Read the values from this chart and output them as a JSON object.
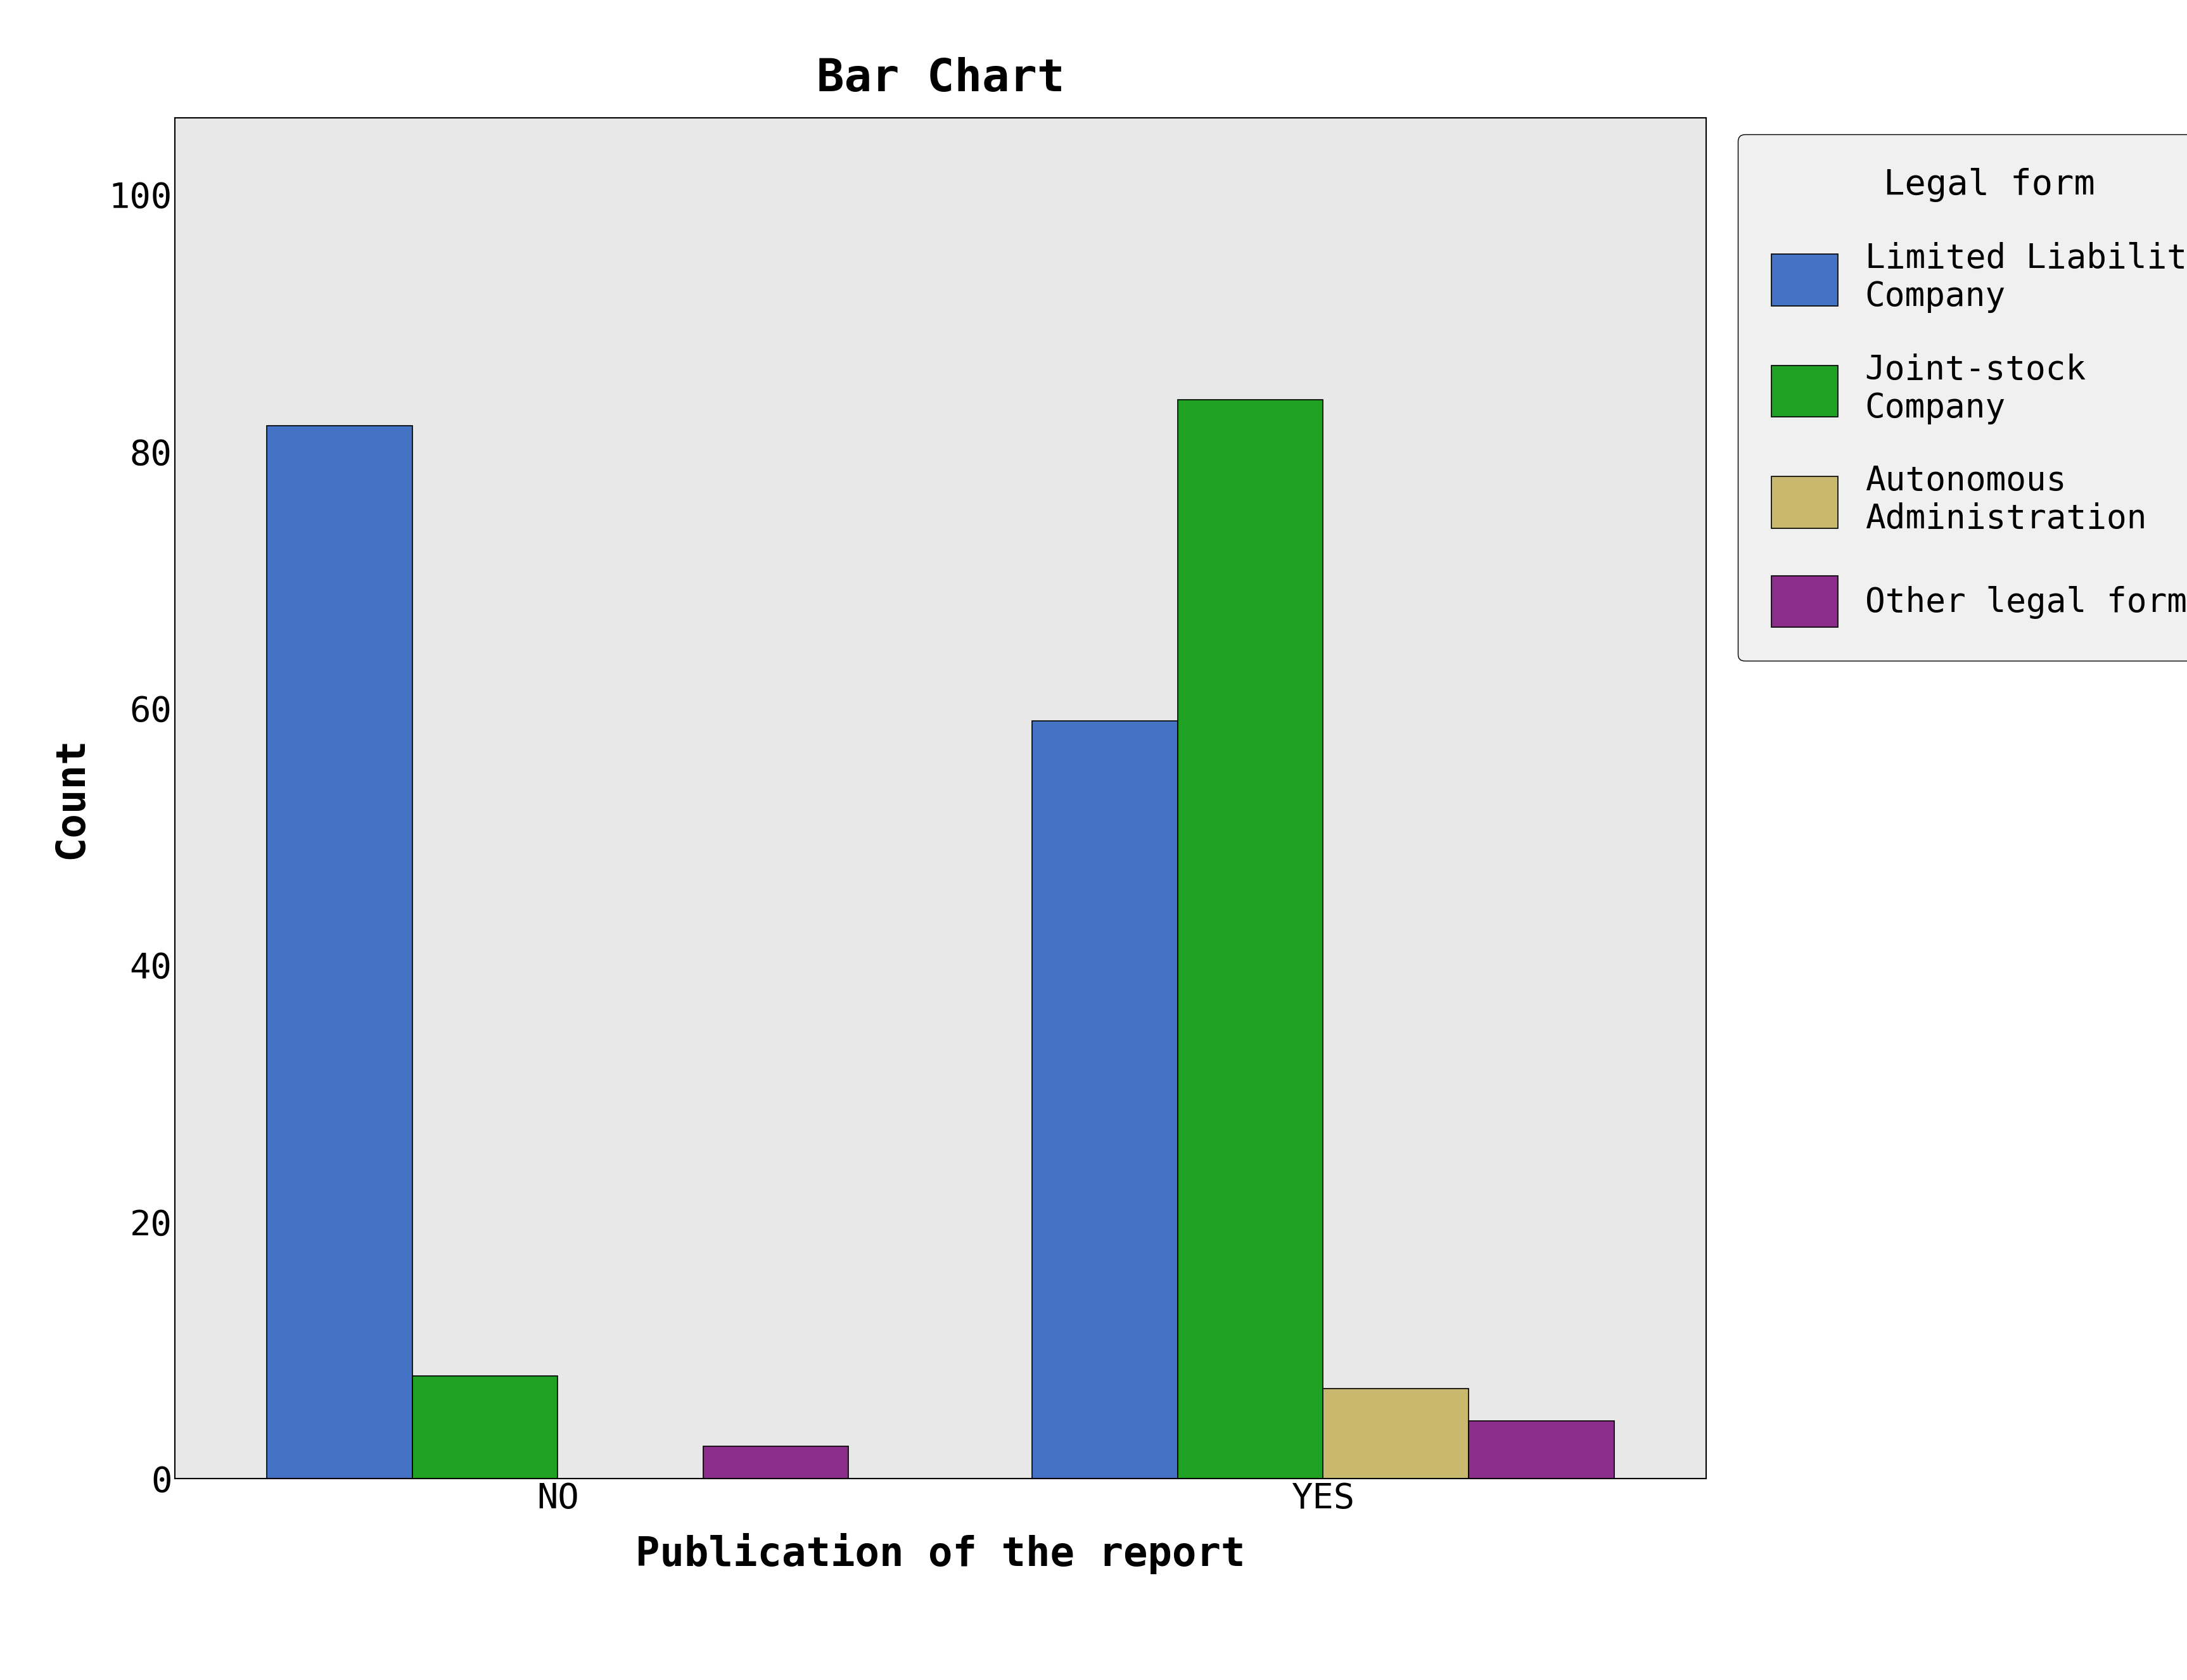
{
  "title": "Bar Chart",
  "xlabel": "Publication of the report",
  "ylabel": "Count",
  "categories": [
    "NO",
    "YES"
  ],
  "series": [
    {
      "name": "Limited Liability\nCompany",
      "color": "#4472C4",
      "values": [
        82,
        59
      ]
    },
    {
      "name": "Joint-stock\nCompany",
      "color": "#1FA123",
      "values": [
        8,
        84
      ]
    },
    {
      "name": "Autonomous\nAdministration",
      "color": "#C8B96E",
      "values": [
        0,
        7
      ]
    },
    {
      "name": "Other legal forms",
      "color": "#8B2E8B",
      "values": [
        2.5,
        4.5
      ]
    }
  ],
  "ylim": [
    0,
    106
  ],
  "yticks": [
    0,
    20,
    40,
    60,
    80,
    100
  ],
  "legend_title": "Legal form",
  "plot_bg_color": "#E8E8E8",
  "fig_bg_color": "#FFFFFF",
  "bar_width": 0.19,
  "title_fontsize": 52,
  "axis_label_fontsize": 46,
  "tick_fontsize": 40,
  "legend_fontsize": 38,
  "legend_title_fontsize": 40
}
